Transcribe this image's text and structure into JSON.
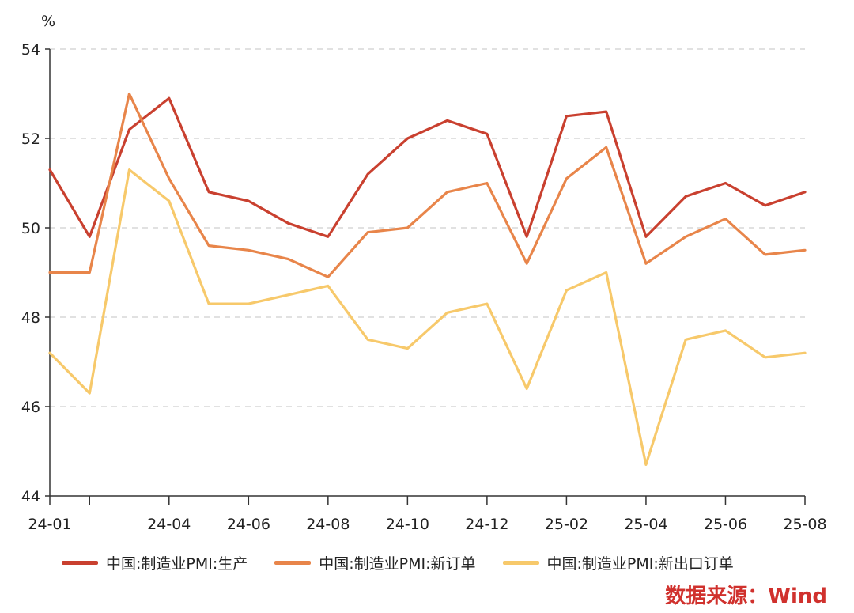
{
  "chart_data": {
    "type": "line",
    "ylabel": "%",
    "ylim": [
      44,
      54
    ],
    "yticks": [
      44,
      46,
      48,
      50,
      52,
      54
    ],
    "x": [
      "24-01",
      "24-02",
      "24-03",
      "24-04",
      "24-05",
      "24-06",
      "24-07",
      "24-08",
      "24-09",
      "24-10",
      "24-11",
      "24-12",
      "25-01",
      "25-02",
      "25-03",
      "25-04",
      "25-05",
      "25-06",
      "25-07",
      "25-08"
    ],
    "xtick_labels": [
      "24-01",
      "24-04",
      "24-06",
      "24-08",
      "24-10",
      "24-12",
      "25-02",
      "25-04",
      "25-06",
      "25-08"
    ],
    "grid": "horizontal-dashed",
    "legend_position": "bottom",
    "series": [
      {
        "name": "中国:制造业PMI:生产",
        "color": "#c9402f",
        "values": [
          51.3,
          49.8,
          52.2,
          52.9,
          50.8,
          50.6,
          50.1,
          49.8,
          51.2,
          52.0,
          52.4,
          52.1,
          49.8,
          52.5,
          52.6,
          49.8,
          50.7,
          51.0,
          50.5,
          50.8
        ]
      },
      {
        "name": "中国:制造业PMI:新订单",
        "color": "#e8854a",
        "values": [
          49.0,
          49.0,
          53.0,
          51.1,
          49.6,
          49.5,
          49.3,
          48.9,
          49.9,
          50.0,
          50.8,
          51.0,
          49.2,
          51.1,
          51.8,
          49.2,
          49.8,
          50.2,
          49.4,
          49.5
        ]
      },
      {
        "name": "中国:制造业PMI:新出口订单",
        "color": "#f7c96b",
        "values": [
          47.2,
          46.3,
          51.3,
          50.6,
          48.3,
          48.3,
          48.5,
          48.7,
          47.5,
          47.3,
          48.1,
          48.3,
          46.4,
          48.6,
          49.0,
          44.7,
          47.5,
          47.7,
          47.1,
          47.2
        ]
      }
    ]
  },
  "source": "数据来源：Wind"
}
